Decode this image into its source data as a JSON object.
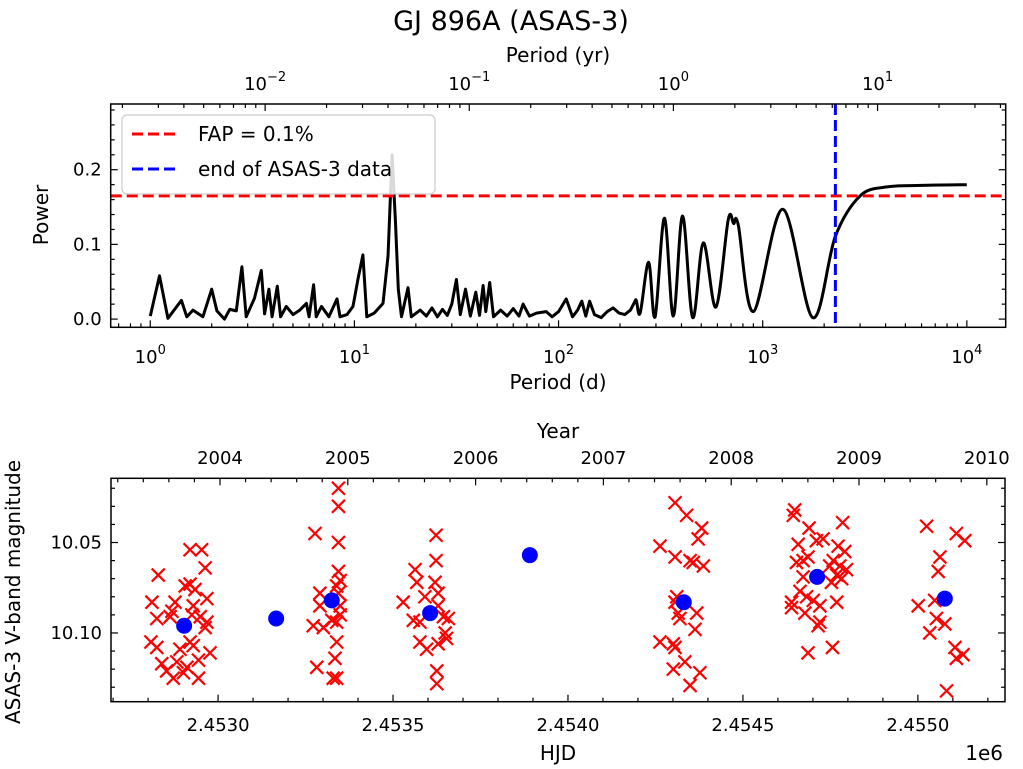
{
  "title": "GJ 896A (ASAS-3)",
  "chart_data": [
    {
      "type": "line",
      "xlabel": "Period (d)",
      "ylabel": "Power",
      "x_scale": "log",
      "xlim": [
        0.64,
        15500
      ],
      "ylim": [
        -0.011,
        0.288
      ],
      "grid": false,
      "legend": "top-left",
      "xticks": [
        {
          "value": 1,
          "base": "10",
          "exp": "0"
        },
        {
          "value": 10,
          "base": "10",
          "exp": "1"
        },
        {
          "value": 100,
          "base": "10",
          "exp": "2"
        },
        {
          "value": 1000,
          "base": "10",
          "exp": "3"
        },
        {
          "value": 10000,
          "base": "10",
          "exp": "4"
        }
      ],
      "yticks": [
        {
          "value": 0.0,
          "label": "0.0"
        },
        {
          "value": 0.1,
          "label": "0.1"
        },
        {
          "value": 0.2,
          "label": "0.2"
        }
      ],
      "secondary_xaxis": {
        "label": "Period (yr)",
        "scale": "log",
        "ticks": [
          {
            "value": 0.01,
            "base": "10",
            "exp": "−2"
          },
          {
            "value": 0.1,
            "base": "10",
            "exp": "−1"
          },
          {
            "value": 1,
            "base": "10",
            "exp": "0"
          },
          {
            "value": 10,
            "base": "10",
            "exp": "1"
          }
        ]
      },
      "series": [
        {
          "color": "#000000",
          "period": [
            1,
            1.11,
            1.22,
            1.42,
            1.51,
            1.62,
            1.81,
            2.0,
            2.12,
            2.31,
            2.45,
            2.64,
            2.81,
            2.95,
            3.24,
            3.5,
            3.63,
            3.81,
            3.95,
            4.19,
            4.35,
            4.64,
            5,
            5.4,
            5.82,
            6,
            6.31,
            6.5,
            6.9,
            7.5,
            8.22,
            8.5,
            9.2,
            9.84,
            10.4,
            11.0,
            11.5,
            12.5,
            13.8,
            14.6,
            15.3,
            15.9,
            16.4,
            17,
            18.3,
            19,
            21,
            22.5,
            24,
            25.5,
            27,
            28.5,
            30,
            31.6,
            33,
            35,
            37,
            39.3,
            41,
            42.7,
            44,
            46,
            48,
            52,
            56,
            60,
            64,
            67,
            72,
            78,
            87,
            93,
            100,
            109,
            117,
            124,
            130,
            136,
            142,
            150,
            162,
            173,
            185,
            198,
            211,
            225,
            239,
            251,
            276,
            297,
            330,
            365,
            405,
            454,
            512,
            590,
            678,
            720,
            759,
            900,
            1253,
            1758,
            2270,
            3000,
            4056,
            6000,
            10000
          ],
          "power": [
            0.004,
            0.058,
            0.001,
            0.025,
            0.003,
            0.012,
            0.003,
            0.04,
            0.011,
            0.0,
            0.013,
            0.011,
            0.07,
            0.003,
            0.028,
            0.065,
            0.007,
            0.04,
            0.003,
            0.044,
            0.003,
            0.017,
            0.006,
            0.012,
            0.021,
            0.003,
            0.046,
            0.003,
            0.017,
            0.003,
            0.027,
            0.003,
            0.006,
            0.017,
            0.053,
            0.086,
            0.003,
            0.008,
            0.021,
            0.084,
            0.22,
            0.129,
            0.04,
            0.003,
            0.042,
            0.003,
            0.012,
            0.004,
            0.015,
            0.003,
            0.013,
            0.005,
            0.02,
            0.053,
            0.006,
            0.04,
            0.004,
            0.036,
            0.005,
            0.045,
            0.01,
            0.049,
            0.003,
            0.012,
            0.004,
            0.014,
            0.004,
            0.02,
            0.004,
            0.008,
            0.01,
            0.003,
            0.01,
            0.027,
            0.003,
            0.012,
            0.024,
            0.004,
            0.024,
            0.006,
            0.002,
            0.01,
            0.015,
            0.008,
            0.006,
            0.012,
            0.026,
            0.008,
            0.076,
            0.003,
            0.135,
            0.004,
            0.138,
            0.002,
            0.102,
            0.016,
            0.133,
            0.128,
            0.126,
            0.01,
            0.147,
            0.002,
            0.111,
            0.165,
            0.177,
            0.179,
            0.18
          ]
        }
      ],
      "reference_lines": [
        {
          "orientation": "horizontal",
          "y": 0.165,
          "label": "FAP = 0.1%",
          "color": "#ff0000",
          "style": "dashed"
        },
        {
          "orientation": "vertical",
          "x": 2270,
          "label": "end of ASAS-3 data",
          "color": "#0000ff",
          "style": "dashed"
        }
      ]
    },
    {
      "type": "scatter",
      "xlabel": "HJD",
      "x_offset_label": "1e6",
      "ylabel": "ASAS-3 V-band magnitude",
      "xlim": [
        2452694,
        2455249
      ],
      "ylim": [
        10.138,
        10.0145
      ],
      "y_inverted": true,
      "grid": false,
      "xticks": [
        {
          "value": 2453000,
          "label": "2.4530"
        },
        {
          "value": 2453500,
          "label": "2.4535"
        },
        {
          "value": 2454000,
          "label": "2.4540"
        },
        {
          "value": 2454500,
          "label": "2.4545"
        },
        {
          "value": 2455000,
          "label": "2.4550"
        }
      ],
      "yticks": [
        {
          "value": 10.05,
          "label": "10.05"
        },
        {
          "value": 10.1,
          "label": "10.10"
        }
      ],
      "secondary_xaxis": {
        "label": "Year",
        "ticks": [
          {
            "value": 2004,
            "label": "2004"
          },
          {
            "value": 2005,
            "label": "2005"
          },
          {
            "value": 2006,
            "label": "2006"
          },
          {
            "value": 2007,
            "label": "2007"
          },
          {
            "value": 2008,
            "label": "2008"
          },
          {
            "value": 2009,
            "label": "2009"
          },
          {
            "value": 2010,
            "label": "2010"
          }
        ]
      },
      "series": [
        {
          "marker": "x",
          "color": "#ff0000",
          "points": [
            [
              2452829,
              10.068
            ],
            [
              2452811,
              10.083
            ],
            [
              2452825,
              10.092
            ],
            [
              2452808,
              10.105
            ],
            [
              2452825,
              10.108
            ],
            [
              2452839,
              10.117
            ],
            [
              2452853,
              10.121
            ],
            [
              2452872,
              10.125
            ],
            [
              2452863,
              10.091
            ],
            [
              2452877,
              10.083
            ],
            [
              2452906,
              10.074
            ],
            [
              2452920,
              10.073
            ],
            [
              2452920,
              10.054
            ],
            [
              2452953,
              10.054
            ],
            [
              2452963,
              10.064
            ],
            [
              2452934,
              10.076
            ],
            [
              2452968,
              10.081
            ],
            [
              2452929,
              10.085
            ],
            [
              2452925,
              10.09
            ],
            [
              2452949,
              10.091
            ],
            [
              2452968,
              10.094
            ],
            [
              2452963,
              10.097
            ],
            [
              2452977,
              10.111
            ],
            [
              2452944,
              10.115
            ],
            [
              2452929,
              10.107
            ],
            [
              2452891,
              10.109
            ],
            [
              2452882,
              10.116
            ],
            [
              2452901,
              10.122
            ],
            [
              2452944,
              10.125
            ],
            [
              2452920,
              10.105
            ],
            [
              2452868,
              10.088
            ],
            [
              2452911,
              10.119
            ],
            [
              2453277,
              10.045
            ],
            [
              2453344,
              10.02
            ],
            [
              2453344,
              10.03
            ],
            [
              2453344,
              10.05
            ],
            [
              2453344,
              10.066
            ],
            [
              2453349,
              10.071
            ],
            [
              2453339,
              10.074
            ],
            [
              2453291,
              10.078
            ],
            [
              2453291,
              10.085
            ],
            [
              2453272,
              10.096
            ],
            [
              2453301,
              10.097
            ],
            [
              2453325,
              10.093
            ],
            [
              2453349,
              10.09
            ],
            [
              2453339,
              10.094
            ],
            [
              2453339,
              10.105
            ],
            [
              2453282,
              10.119
            ],
            [
              2453334,
              10.114
            ],
            [
              2453329,
              10.125
            ],
            [
              2453339,
              10.125
            ],
            [
              2453349,
              10.085
            ],
            [
              2453344,
              10.078
            ],
            [
              2453623,
              10.046
            ],
            [
              2453623,
              10.06
            ],
            [
              2453563,
              10.065
            ],
            [
              2453568,
              10.072
            ],
            [
              2453529,
              10.083
            ],
            [
              2453620,
              10.072
            ],
            [
              2453629,
              10.078
            ],
            [
              2453591,
              10.08
            ],
            [
              2453558,
              10.093
            ],
            [
              2453577,
              10.094
            ],
            [
              2453629,
              10.085
            ],
            [
              2453644,
              10.091
            ],
            [
              2453658,
              10.092
            ],
            [
              2453649,
              10.1
            ],
            [
              2453653,
              10.103
            ],
            [
              2453577,
              10.105
            ],
            [
              2453596,
              10.109
            ],
            [
              2453629,
              10.106
            ],
            [
              2453625,
              10.121
            ],
            [
              2453625,
              10.128
            ],
            [
              2454306,
              10.028
            ],
            [
              2454339,
              10.035
            ],
            [
              2454382,
              10.042
            ],
            [
              2454372,
              10.048
            ],
            [
              2454263,
              10.052
            ],
            [
              2454306,
              10.058
            ],
            [
              2454349,
              10.06
            ],
            [
              2454358,
              10.061
            ],
            [
              2454387,
              10.063
            ],
            [
              2454311,
              10.08
            ],
            [
              2454306,
              10.083
            ],
            [
              2454315,
              10.089
            ],
            [
              2454320,
              10.092
            ],
            [
              2454368,
              10.089
            ],
            [
              2454363,
              10.098
            ],
            [
              2454263,
              10.105
            ],
            [
              2454301,
              10.106
            ],
            [
              2454306,
              10.108
            ],
            [
              2454334,
              10.116
            ],
            [
              2454301,
              10.12
            ],
            [
              2454377,
              10.122
            ],
            [
              2454349,
              10.129
            ],
            [
              2454648,
              10.032
            ],
            [
              2454644,
              10.035
            ],
            [
              2454689,
              10.042
            ],
            [
              2454785,
              10.039
            ],
            [
              2454729,
              10.048
            ],
            [
              2454710,
              10.049
            ],
            [
              2454658,
              10.051
            ],
            [
              2454772,
              10.052
            ],
            [
              2454791,
              10.055
            ],
            [
              2454686,
              10.058
            ],
            [
              2454672,
              10.06
            ],
            [
              2454653,
              10.061
            ],
            [
              2454758,
              10.06
            ],
            [
              2454748,
              10.063
            ],
            [
              2454777,
              10.063
            ],
            [
              2454796,
              10.065
            ],
            [
              2454768,
              10.068
            ],
            [
              2454753,
              10.072
            ],
            [
              2454782,
              10.07
            ],
            [
              2454672,
              10.069
            ],
            [
              2454663,
              10.077
            ],
            [
              2454682,
              10.08
            ],
            [
              2454701,
              10.082
            ],
            [
              2454639,
              10.083
            ],
            [
              2454639,
              10.086
            ],
            [
              2454720,
              10.085
            ],
            [
              2454768,
              10.083
            ],
            [
              2454677,
              10.089
            ],
            [
              2454720,
              10.094
            ],
            [
              2454715,
              10.096
            ],
            [
              2454686,
              10.111
            ],
            [
              2454756,
              10.108
            ],
            [
              2455025,
              10.041
            ],
            [
              2455110,
              10.045
            ],
            [
              2455134,
              10.049
            ],
            [
              2455063,
              10.058
            ],
            [
              2455058,
              10.066
            ],
            [
              2455001,
              10.085
            ],
            [
              2455048,
              10.082
            ],
            [
              2455053,
              10.092
            ],
            [
              2455077,
              10.095
            ],
            [
              2455034,
              10.1
            ],
            [
              2455106,
              10.108
            ],
            [
              2455129,
              10.112
            ],
            [
              2455110,
              10.114
            ],
            [
              2455082,
              10.132
            ]
          ]
        },
        {
          "marker": "o",
          "color": "#0000ff",
          "points": [
            [
              2452903,
              10.096
            ],
            [
              2453166,
              10.092
            ],
            [
              2453325,
              10.082
            ],
            [
              2453606,
              10.089
            ],
            [
              2453891,
              10.057
            ],
            [
              2454331,
              10.083
            ],
            [
              2454712,
              10.069
            ],
            [
              2455077,
              10.081
            ]
          ]
        }
      ]
    }
  ]
}
